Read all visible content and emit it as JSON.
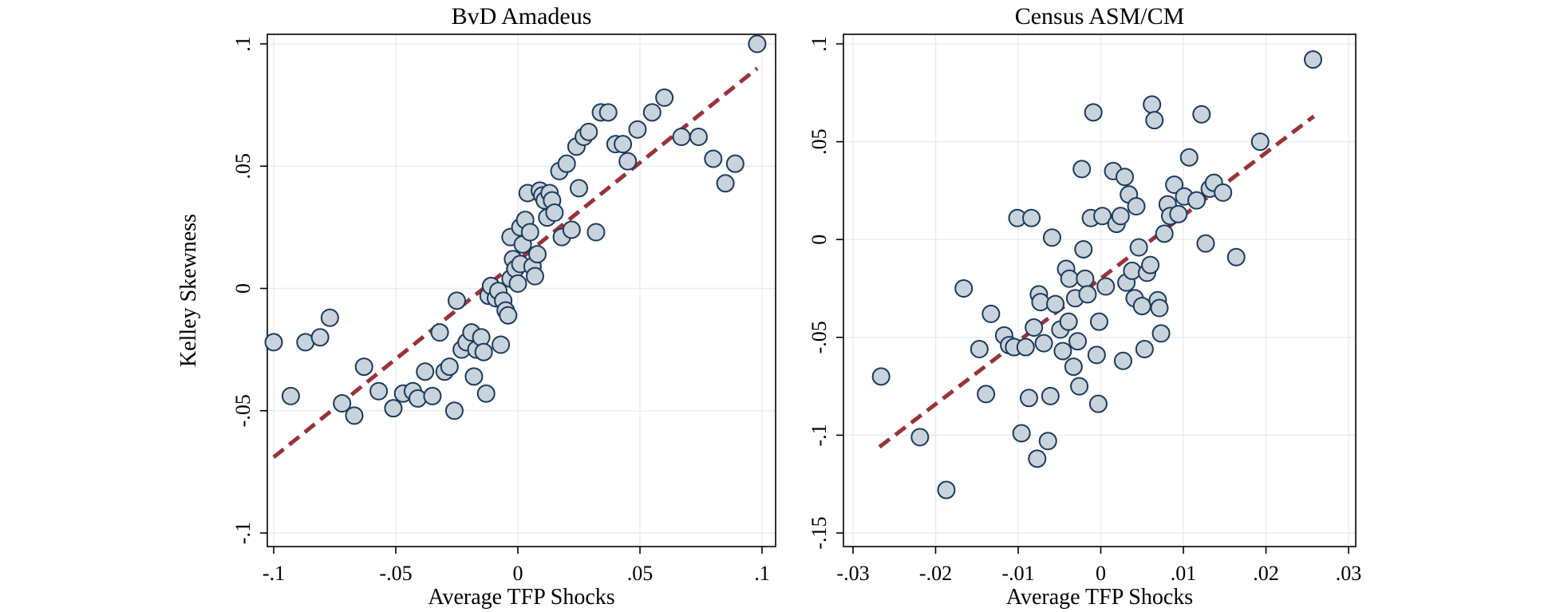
{
  "colors": {
    "marker_fill": "#c9d3dc",
    "marker_edge": "#1a3a5c",
    "fit_line": "#9a3238",
    "grid": "#e8edf1"
  },
  "shared_ylabel": "Kelley Skewness",
  "chart_data": [
    {
      "type": "scatter",
      "title": "BvD Amadeus",
      "xlabel": "Average TFP Shocks",
      "ylabel": "Kelley Skewness",
      "grid": true,
      "xlim": [
        -0.1,
        0.1
      ],
      "ylim": [
        -0.1,
        0.1
      ],
      "xticks": [
        -0.1,
        -0.05,
        0,
        0.05,
        0.1
      ],
      "xtick_labels": [
        "-.1",
        "-.05",
        "0",
        ".05",
        ".1"
      ],
      "yticks": [
        -0.1,
        -0.05,
        0,
        0.05,
        0.1
      ],
      "ytick_labels": [
        "-.1",
        "-.05",
        "0",
        ".05",
        ".1"
      ],
      "fit_line": {
        "x": [
          -0.1,
          0.098
        ],
        "y": [
          -0.069,
          0.09
        ]
      },
      "points": [
        [
          -0.1,
          -0.022
        ],
        [
          -0.093,
          -0.044
        ],
        [
          -0.087,
          -0.022
        ],
        [
          -0.081,
          -0.02
        ],
        [
          -0.077,
          -0.012
        ],
        [
          -0.072,
          -0.047
        ],
        [
          -0.067,
          -0.052
        ],
        [
          -0.063,
          -0.032
        ],
        [
          -0.057,
          -0.042
        ],
        [
          -0.051,
          -0.049
        ],
        [
          -0.047,
          -0.043
        ],
        [
          -0.043,
          -0.042
        ],
        [
          -0.041,
          -0.045
        ],
        [
          -0.038,
          -0.034
        ],
        [
          -0.035,
          -0.044
        ],
        [
          -0.032,
          -0.018
        ],
        [
          -0.03,
          -0.034
        ],
        [
          -0.028,
          -0.032
        ],
        [
          -0.026,
          -0.05
        ],
        [
          -0.025,
          -0.005
        ],
        [
          -0.023,
          -0.025
        ],
        [
          -0.021,
          -0.022
        ],
        [
          -0.019,
          -0.018
        ],
        [
          -0.018,
          -0.036
        ],
        [
          -0.017,
          -0.025
        ],
        [
          -0.015,
          -0.02
        ],
        [
          -0.014,
          -0.026
        ],
        [
          -0.013,
          -0.043
        ],
        [
          -0.012,
          -0.003
        ],
        [
          -0.011,
          0.001
        ],
        [
          -0.009,
          -0.004
        ],
        [
          -0.008,
          -0.001
        ],
        [
          -0.007,
          -0.023
        ],
        [
          -0.006,
          -0.005
        ],
        [
          -0.005,
          -0.009
        ],
        [
          -0.004,
          -0.011
        ],
        [
          -0.003,
          0.004
        ],
        [
          -0.003,
          0.021
        ],
        [
          -0.002,
          0.012
        ],
        [
          -0.001,
          0.008
        ],
        [
          0.0,
          0.002
        ],
        [
          0.001,
          0.01
        ],
        [
          0.001,
          0.025
        ],
        [
          0.002,
          0.018
        ],
        [
          0.003,
          0.028
        ],
        [
          0.004,
          0.039
        ],
        [
          0.005,
          0.023
        ],
        [
          0.006,
          0.009
        ],
        [
          0.007,
          0.005
        ],
        [
          0.008,
          0.014
        ],
        [
          0.009,
          0.04
        ],
        [
          0.01,
          0.038
        ],
        [
          0.011,
          0.036
        ],
        [
          0.012,
          0.029
        ],
        [
          0.013,
          0.039
        ],
        [
          0.014,
          0.036
        ],
        [
          0.015,
          0.031
        ],
        [
          0.017,
          0.048
        ],
        [
          0.018,
          0.021
        ],
        [
          0.02,
          0.051
        ],
        [
          0.022,
          0.024
        ],
        [
          0.024,
          0.058
        ],
        [
          0.025,
          0.041
        ],
        [
          0.027,
          0.062
        ],
        [
          0.029,
          0.064
        ],
        [
          0.032,
          0.023
        ],
        [
          0.034,
          0.072
        ],
        [
          0.037,
          0.072
        ],
        [
          0.04,
          0.059
        ],
        [
          0.043,
          0.059
        ],
        [
          0.045,
          0.052
        ],
        [
          0.049,
          0.065
        ],
        [
          0.055,
          0.072
        ],
        [
          0.06,
          0.078
        ],
        [
          0.067,
          0.062
        ],
        [
          0.074,
          0.062
        ],
        [
          0.08,
          0.053
        ],
        [
          0.085,
          0.043
        ],
        [
          0.089,
          0.051
        ],
        [
          0.098,
          0.1
        ]
      ]
    },
    {
      "type": "scatter",
      "title": "Census ASM/CM",
      "xlabel": "Average TFP Shocks",
      "ylabel": "",
      "grid": true,
      "xlim": [
        -0.031,
        0.031
      ],
      "ylim": [
        -0.155,
        0.105
      ],
      "xticks": [
        -0.03,
        -0.02,
        -0.01,
        0,
        0.01,
        0.02,
        0.03
      ],
      "xtick_labels": [
        "-.03",
        "-.02",
        "-.01",
        "0",
        ".01",
        ".02",
        ".03"
      ],
      "yticks": [
        -0.15,
        -0.1,
        -0.05,
        0,
        0.05,
        0.1
      ],
      "ytick_labels": [
        "-.15",
        "-.1",
        "-.05",
        "0",
        ".05",
        ".1"
      ],
      "fit_line": {
        "x": [
          -0.0268,
          0.0258
        ],
        "y": [
          -0.106,
          0.063
        ]
      },
      "points": [
        [
          -0.0266,
          -0.07
        ],
        [
          -0.0219,
          -0.101
        ],
        [
          -0.0187,
          -0.128
        ],
        [
          -0.0166,
          -0.025
        ],
        [
          -0.0147,
          -0.056
        ],
        [
          -0.0139,
          -0.079
        ],
        [
          -0.0133,
          -0.038
        ],
        [
          -0.0117,
          -0.049
        ],
        [
          -0.0111,
          -0.054
        ],
        [
          -0.0105,
          -0.055
        ],
        [
          -0.0101,
          0.011
        ],
        [
          -0.0096,
          -0.099
        ],
        [
          -0.0091,
          -0.055
        ],
        [
          -0.0087,
          -0.081
        ],
        [
          -0.0084,
          0.011
        ],
        [
          -0.0081,
          -0.045
        ],
        [
          -0.0077,
          -0.112
        ],
        [
          -0.0075,
          -0.028
        ],
        [
          -0.0073,
          -0.032
        ],
        [
          -0.0069,
          -0.053
        ],
        [
          -0.0064,
          -0.103
        ],
        [
          -0.0061,
          -0.08
        ],
        [
          -0.0059,
          0.001
        ],
        [
          -0.0055,
          -0.033
        ],
        [
          -0.0049,
          -0.046
        ],
        [
          -0.0046,
          -0.057
        ],
        [
          -0.0042,
          -0.015
        ],
        [
          -0.0039,
          -0.042
        ],
        [
          -0.0038,
          -0.02
        ],
        [
          -0.0033,
          -0.065
        ],
        [
          -0.0031,
          -0.03
        ],
        [
          -0.0028,
          -0.052
        ],
        [
          -0.0026,
          -0.075
        ],
        [
          -0.0023,
          0.036
        ],
        [
          -0.0021,
          -0.005
        ],
        [
          -0.0019,
          -0.02
        ],
        [
          -0.0016,
          -0.028
        ],
        [
          -0.0012,
          0.011
        ],
        [
          -0.0009,
          0.065
        ],
        [
          -0.0005,
          -0.059
        ],
        [
          -0.0003,
          -0.084
        ],
        [
          -0.0002,
          -0.042
        ],
        [
          0.0002,
          0.012
        ],
        [
          0.0006,
          -0.024
        ],
        [
          0.0015,
          0.035
        ],
        [
          0.0019,
          0.008
        ],
        [
          0.0024,
          0.012
        ],
        [
          0.0027,
          -0.062
        ],
        [
          0.0029,
          0.032
        ],
        [
          0.0031,
          -0.022
        ],
        [
          0.0034,
          0.023
        ],
        [
          0.0038,
          -0.016
        ],
        [
          0.0041,
          -0.03
        ],
        [
          0.0043,
          0.017
        ],
        [
          0.0046,
          -0.004
        ],
        [
          0.005,
          -0.034
        ],
        [
          0.0053,
          -0.056
        ],
        [
          0.0056,
          -0.017
        ],
        [
          0.006,
          -0.013
        ],
        [
          0.0062,
          0.069
        ],
        [
          0.0065,
          0.061
        ],
        [
          0.0069,
          -0.031
        ],
        [
          0.0071,
          -0.035
        ],
        [
          0.0073,
          -0.048
        ],
        [
          0.0077,
          0.003
        ],
        [
          0.0081,
          0.018
        ],
        [
          0.0084,
          0.012
        ],
        [
          0.0089,
          0.028
        ],
        [
          0.0094,
          0.013
        ],
        [
          0.0101,
          0.022
        ],
        [
          0.0107,
          0.042
        ],
        [
          0.0116,
          0.02
        ],
        [
          0.0122,
          0.064
        ],
        [
          0.0127,
          -0.002
        ],
        [
          0.0132,
          0.026
        ],
        [
          0.0137,
          0.029
        ],
        [
          0.0148,
          0.024
        ],
        [
          0.0164,
          -0.009
        ],
        [
          0.0193,
          0.05
        ],
        [
          0.0257,
          0.092
        ]
      ]
    }
  ]
}
